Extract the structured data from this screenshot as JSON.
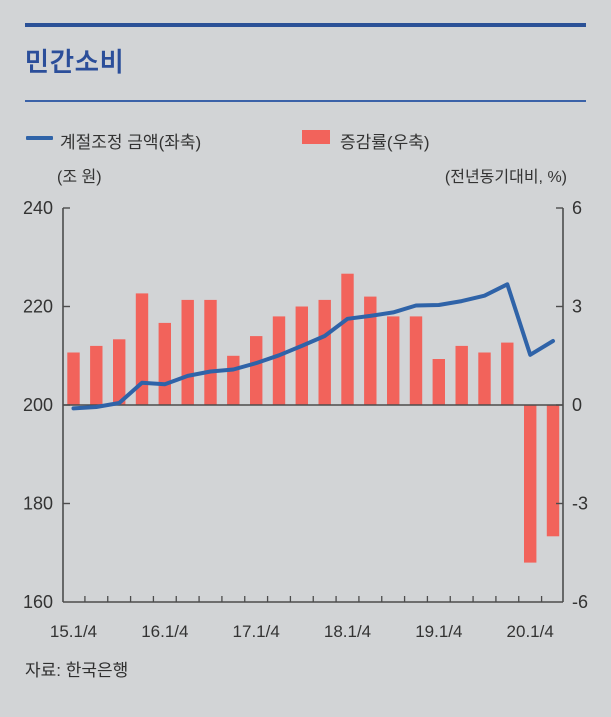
{
  "header": {
    "title": "민간소비"
  },
  "legend": {
    "line_label": "계절조정 금액(좌축)",
    "bar_label": "증감률(우축)"
  },
  "axis_units": {
    "left": "(조 원)",
    "right": "(전년동기대비, %)"
  },
  "source": "자료: 한국은행",
  "colors": {
    "background": "#d2d4d6",
    "accent_navy": "#2b4e9a",
    "line_blue": "#2f63a8",
    "bar_red": "#f2635b",
    "axis": "#4c4c4c",
    "text": "#333333"
  },
  "chart_data": {
    "type": "bar",
    "subtype": "bar+line dual axis",
    "x": [
      "15.1/4",
      "15.2/4",
      "15.3/4",
      "15.4/4",
      "16.1/4",
      "16.2/4",
      "16.3/4",
      "16.4/4",
      "17.1/4",
      "17.2/4",
      "17.3/4",
      "17.4/4",
      "18.1/4",
      "18.2/4",
      "18.3/4",
      "18.4/4",
      "19.1/4",
      "19.2/4",
      "19.3/4",
      "19.4/4",
      "20.1/4",
      "20.2/4"
    ],
    "x_tick_labels": [
      "15.1/4",
      "16.1/4",
      "17.1/4",
      "18.1/4",
      "19.1/4",
      "20.1/4"
    ],
    "series": [
      {
        "name": "계절조정 금액(좌축)",
        "type": "line",
        "axis": "left",
        "values": [
          199.3,
          199.6,
          200.4,
          204.5,
          204.2,
          205.9,
          206.8,
          207.2,
          208.5,
          210.1,
          212.0,
          214.0,
          217.5,
          218.1,
          218.8,
          220.2,
          220.3,
          221.1,
          222.2,
          224.5,
          210.2,
          213.0
        ]
      },
      {
        "name": "증감률(우축)",
        "type": "bar",
        "axis": "right",
        "values": [
          1.6,
          1.8,
          2.0,
          3.4,
          2.5,
          3.2,
          3.2,
          1.5,
          2.1,
          2.7,
          3.0,
          3.2,
          4.0,
          3.3,
          2.7,
          2.7,
          1.4,
          1.8,
          1.6,
          1.9,
          -4.8,
          -4.0
        ]
      }
    ],
    "left_axis": {
      "label": "(조 원)",
      "range": [
        160,
        240
      ],
      "ticks": [
        240,
        220,
        200,
        180,
        160
      ]
    },
    "right_axis": {
      "label": "(전년동기대비, %)",
      "range": [
        -6,
        6
      ],
      "ticks": [
        6,
        3,
        0,
        -3,
        -6
      ]
    },
    "zero_line": true,
    "grid": false,
    "legend_position": "top"
  }
}
